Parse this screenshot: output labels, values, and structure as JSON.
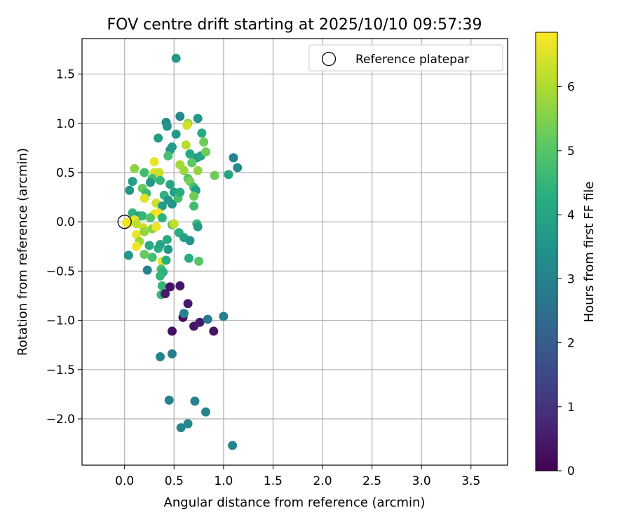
{
  "chart_data": {
    "type": "scatter",
    "title": "FOV centre drift starting at 2025/10/10 09:57:39",
    "xlabel": "Angular distance from reference (arcmin)",
    "ylabel": "Rotation from reference (arcmin)",
    "xlim": [
      -0.43,
      3.87
    ],
    "ylim": [
      -2.47,
      1.86
    ],
    "x_ticks": [
      0.0,
      0.5,
      1.0,
      1.5,
      2.0,
      2.5,
      3.0,
      3.5
    ],
    "x_tick_labels": [
      "0.0",
      "0.5",
      "1.0",
      "1.5",
      "2.0",
      "2.5",
      "3.0",
      "3.5"
    ],
    "y_ticks": [
      -2.0,
      -1.5,
      -1.0,
      -0.5,
      0.0,
      0.5,
      1.0,
      1.5
    ],
    "y_tick_labels": [
      "−2.0",
      "−1.5",
      "−1.0",
      "−0.5",
      "0.0",
      "0.5",
      "1.0",
      "1.5"
    ],
    "grid": true,
    "legend": {
      "position": "top-right",
      "label": "Reference platepar"
    },
    "reference": {
      "x": 0.0,
      "y": 0.0
    },
    "colorbar": {
      "label": "Hours from first FF file",
      "range": [
        0,
        6.85
      ],
      "ticks": [
        0,
        1,
        2,
        3,
        4,
        5,
        6
      ],
      "tick_labels": [
        "0",
        "1",
        "2",
        "3",
        "4",
        "5",
        "6"
      ],
      "colormap": "viridis"
    },
    "points": [
      [
        0.52,
        1.66,
        3.7
      ],
      [
        0.56,
        1.07,
        3.2
      ],
      [
        0.74,
        1.05,
        3.6
      ],
      [
        0.42,
        1.01,
        3.3
      ],
      [
        0.43,
        0.97,
        3.5
      ],
      [
        0.64,
        1.0,
        5.7
      ],
      [
        0.63,
        0.98,
        6.4
      ],
      [
        0.52,
        0.89,
        3.7
      ],
      [
        0.78,
        0.9,
        4.2
      ],
      [
        0.34,
        0.85,
        3.8
      ],
      [
        0.62,
        0.78,
        6.1
      ],
      [
        0.8,
        0.81,
        5.3
      ],
      [
        0.48,
        0.76,
        3.8
      ],
      [
        0.46,
        0.73,
        3.6
      ],
      [
        0.73,
        0.65,
        3.7
      ],
      [
        0.77,
        0.67,
        3.9
      ],
      [
        0.82,
        0.71,
        5.3
      ],
      [
        0.66,
        0.69,
        4.1
      ],
      [
        0.44,
        0.67,
        4.8
      ],
      [
        1.1,
        0.65,
        3.1
      ],
      [
        1.14,
        0.55,
        3.3
      ],
      [
        1.05,
        0.48,
        4.0
      ],
      [
        0.91,
        0.47,
        5.3
      ],
      [
        0.68,
        0.6,
        5.1
      ],
      [
        0.56,
        0.58,
        5.9
      ],
      [
        0.6,
        0.52,
        5.8
      ],
      [
        0.3,
        0.61,
        6.6
      ],
      [
        0.1,
        0.54,
        5.6
      ],
      [
        0.3,
        0.5,
        6.4
      ],
      [
        0.35,
        0.5,
        6.3
      ],
      [
        0.2,
        0.5,
        4.7
      ],
      [
        0.28,
        0.44,
        4.8
      ],
      [
        0.36,
        0.42,
        4.5
      ],
      [
        0.26,
        0.4,
        3.7
      ],
      [
        0.08,
        0.41,
        3.8
      ],
      [
        0.05,
        0.32,
        3.5
      ],
      [
        0.18,
        0.34,
        5.2
      ],
      [
        0.22,
        0.29,
        4.6
      ],
      [
        0.2,
        0.24,
        6.5
      ],
      [
        0.32,
        0.19,
        6.3
      ],
      [
        0.4,
        0.27,
        4.4
      ],
      [
        0.5,
        0.3,
        3.8
      ],
      [
        0.48,
        0.18,
        3.6
      ],
      [
        0.54,
        0.24,
        4.8
      ],
      [
        0.56,
        0.3,
        4.3
      ],
      [
        0.64,
        0.44,
        5.0
      ],
      [
        0.66,
        0.41,
        5.4
      ],
      [
        0.7,
        0.35,
        4.7
      ],
      [
        0.72,
        0.32,
        3.8
      ],
      [
        0.7,
        0.26,
        5.3
      ],
      [
        0.7,
        0.16,
        4.7
      ],
      [
        0.74,
        0.52,
        5.7
      ],
      [
        0.46,
        0.38,
        4.0
      ],
      [
        0.44,
        0.22,
        3.6
      ],
      [
        0.38,
        0.16,
        3.8
      ],
      [
        0.3,
        0.08,
        6.6
      ],
      [
        0.34,
        0.09,
        6.8
      ],
      [
        0.08,
        0.09,
        4.4
      ],
      [
        0.15,
        0.06,
        3.6
      ],
      [
        0.18,
        0.06,
        4.5
      ],
      [
        0.26,
        0.04,
        4.9
      ],
      [
        0.38,
        0.04,
        4.4
      ],
      [
        0.1,
        0.02,
        6.6
      ],
      [
        0.06,
        0.0,
        6.7
      ],
      [
        0.12,
        -0.02,
        6.2
      ],
      [
        0.02,
        -0.01,
        6.7
      ],
      [
        0.19,
        -0.06,
        6.3
      ],
      [
        0.28,
        -0.07,
        5.6
      ],
      [
        0.32,
        -0.05,
        6.7
      ],
      [
        0.48,
        -0.03,
        5.1
      ],
      [
        0.5,
        -0.02,
        6.2
      ],
      [
        0.55,
        -0.11,
        4.3
      ],
      [
        0.6,
        -0.16,
        4.0
      ],
      [
        0.66,
        -0.19,
        3.5
      ],
      [
        0.73,
        -0.02,
        4.6
      ],
      [
        0.74,
        -0.05,
        3.8
      ],
      [
        0.12,
        -0.13,
        6.6
      ],
      [
        0.2,
        -0.1,
        5.7
      ],
      [
        0.15,
        -0.2,
        5.8
      ],
      [
        0.12,
        -0.25,
        6.7
      ],
      [
        0.2,
        -0.33,
        5.2
      ],
      [
        0.25,
        -0.24,
        4.2
      ],
      [
        0.28,
        -0.36,
        4.8
      ],
      [
        0.34,
        -0.27,
        4.3
      ],
      [
        0.36,
        -0.23,
        4.0
      ],
      [
        0.43,
        -0.18,
        4.2
      ],
      [
        0.44,
        -0.28,
        3.7
      ],
      [
        0.38,
        -0.4,
        6.6
      ],
      [
        0.42,
        -0.39,
        4.3
      ],
      [
        0.37,
        -0.48,
        4.8
      ],
      [
        0.39,
        -0.51,
        4.4
      ],
      [
        0.36,
        -0.55,
        4.5
      ],
      [
        0.38,
        -0.65,
        4.5
      ],
      [
        0.37,
        -0.74,
        4.6
      ],
      [
        0.65,
        -0.37,
        4.2
      ],
      [
        0.75,
        -0.4,
        5.0
      ],
      [
        0.04,
        -0.34,
        3.6
      ],
      [
        0.23,
        -0.49,
        3.0
      ],
      [
        0.46,
        -0.66,
        0.3
      ],
      [
        0.41,
        -0.73,
        0.5
      ],
      [
        0.56,
        -0.65,
        0.4
      ],
      [
        0.64,
        -0.83,
        0.5
      ],
      [
        0.59,
        -0.97,
        0.2
      ],
      [
        0.6,
        -0.93,
        3.0
      ],
      [
        0.48,
        -1.11,
        0.3
      ],
      [
        0.7,
        -1.06,
        0.4
      ],
      [
        0.76,
        -1.02,
        0.5
      ],
      [
        0.84,
        -0.99,
        2.8
      ],
      [
        1.0,
        -0.96,
        2.9
      ],
      [
        0.9,
        -1.11,
        0.4
      ],
      [
        0.36,
        -1.37,
        3.1
      ],
      [
        0.48,
        -1.34,
        2.8
      ],
      [
        0.45,
        -1.81,
        3.0
      ],
      [
        0.71,
        -1.82,
        3.0
      ],
      [
        0.82,
        -1.93,
        3.0
      ],
      [
        0.57,
        -2.09,
        3.1
      ],
      [
        0.64,
        -2.05,
        3.2
      ],
      [
        1.09,
        -2.27,
        3.1
      ]
    ]
  }
}
